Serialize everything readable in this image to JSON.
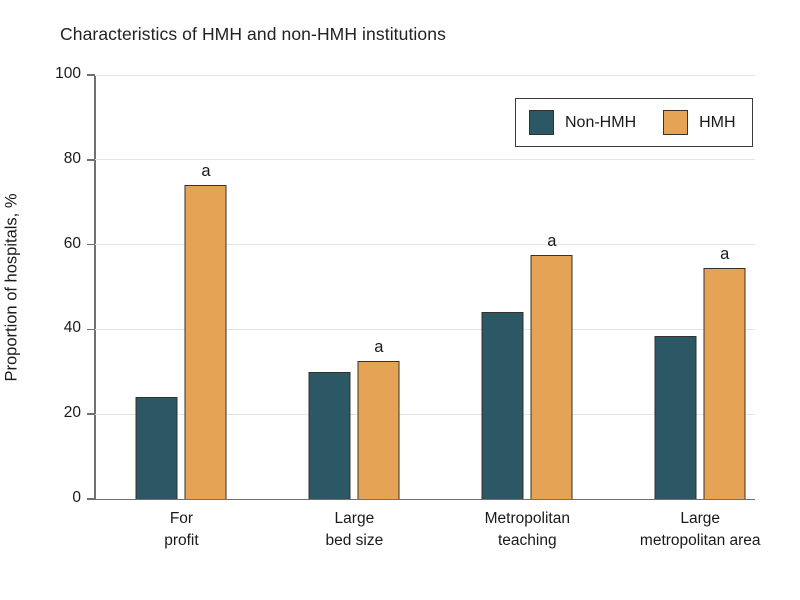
{
  "title": "Characteristics of HMH and non-HMH institutions",
  "colors": {
    "non_hmh_bar": "#2c5764",
    "hmh_bar": "#e5a355",
    "bar_border": "#35322c",
    "gridline": "#e4e4e4",
    "axis": "#707070",
    "text": "#1a1a1a",
    "background": "#ffffff"
  },
  "legend": {
    "position": "top-right",
    "items": [
      {
        "label": "Non-HMH",
        "color": "#2c5764"
      },
      {
        "label": "HMH",
        "color": "#e5a355"
      }
    ]
  },
  "chart_data": {
    "type": "bar",
    "title": "Characteristics of HMH and non-HMH institutions",
    "xlabel": "",
    "ylabel": "Proportion of hospitals, %",
    "ylim": [
      0,
      100
    ],
    "yticks": [
      0,
      20,
      40,
      60,
      80,
      100
    ],
    "grid": true,
    "legend_position": "top-right",
    "categories": [
      "For profit",
      "Large bed size",
      "Metropolitan teaching",
      "Large metropolitan area"
    ],
    "category_lines": [
      [
        "For",
        "profit"
      ],
      [
        "Large",
        "bed size"
      ],
      [
        "Metropolitan",
        "teaching"
      ],
      [
        "Large",
        "metropolitan area"
      ]
    ],
    "series": [
      {
        "name": "Non-HMH",
        "color": "#2c5764",
        "values": [
          24,
          30,
          44,
          38.5
        ]
      },
      {
        "name": "HMH",
        "color": "#e5a355",
        "values": [
          74,
          32.5,
          57.5,
          54.5
        ]
      }
    ],
    "annotations": [
      {
        "text": "a",
        "series": "HMH",
        "applies_to_categories": [
          "For profit",
          "Large bed size",
          "Metropolitan teaching",
          "Large metropolitan area"
        ]
      }
    ]
  }
}
